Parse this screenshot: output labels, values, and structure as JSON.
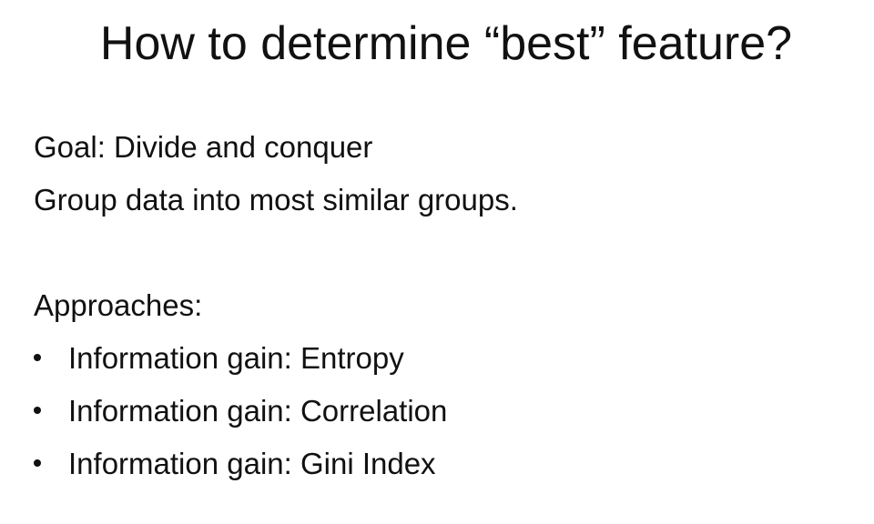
{
  "slide": {
    "title": "How to determine “best” feature?",
    "goal": "Goal: Divide and conquer",
    "group_line": "Group data into most similar groups.",
    "approaches_heading": "Approaches:",
    "approaches": [
      "Information gain: Entropy",
      "Information gain: Correlation",
      "Information gain: Gini Index"
    ]
  }
}
